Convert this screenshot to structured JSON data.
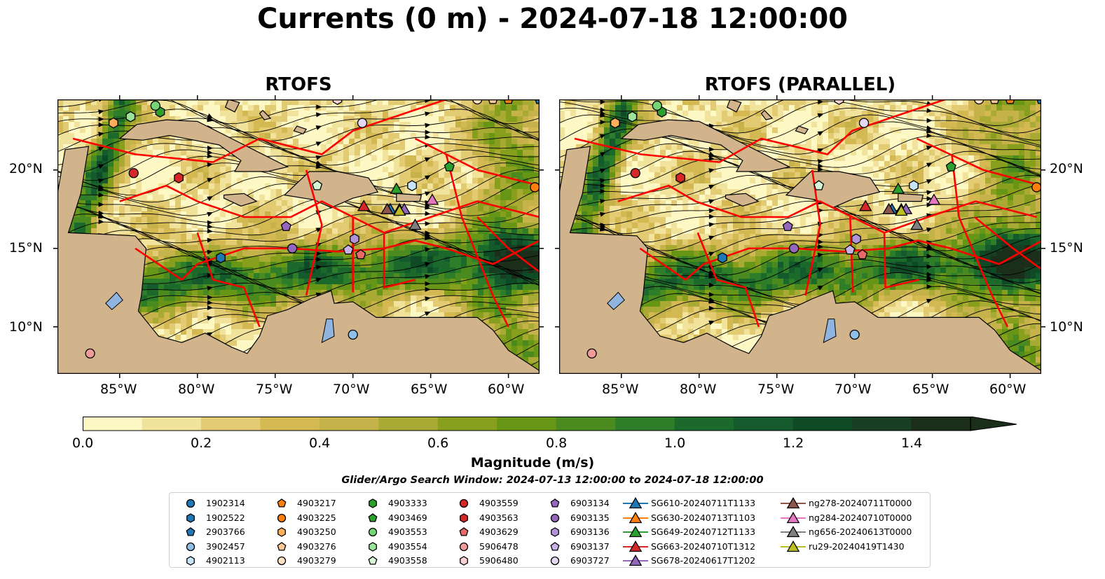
{
  "title": "Currents (0 m) - 2024-07-18 12:00:00",
  "panels": [
    {
      "title": "RTOFS"
    },
    {
      "title": "RTOFS (PARALLEL)"
    }
  ],
  "lat_ticks": [
    "20°N",
    "15°N",
    "10°N"
  ],
  "lon_ticks": [
    "85°W",
    "80°W",
    "75°W",
    "70°W",
    "65°W",
    "60°W"
  ],
  "colorbar": {
    "label": "Magnitude (m/s)",
    "ticks": [
      "0.0",
      "0.2",
      "0.4",
      "0.6",
      "0.8",
      "1.0",
      "1.2",
      "1.4"
    ],
    "range": [
      0,
      1.6
    ],
    "extend": "max",
    "colors": [
      "#fef9c4",
      "#f2e39c",
      "#e2cb72",
      "#d4b952",
      "#c6b24a",
      "#a8aa34",
      "#879f1c",
      "#679515",
      "#4a8a1e",
      "#2e7d28",
      "#1b6a2c",
      "#145a2c",
      "#0f4a26",
      "#173d22",
      "#1b2e1a"
    ]
  },
  "search_window": "Glider/Argo Search Window: 2024-07-13 12:00:00 to 2024-07-18 12:00:00",
  "chart_data": {
    "type": "map",
    "variable": "Currents (0 m)",
    "extent": {
      "lon": [
        -89,
        -58
      ],
      "lat": [
        7,
        24.5
      ]
    },
    "floats": [
      {
        "name": "1902314",
        "marker": "circle",
        "color": "#1f77b4",
        "lon": -57.5,
        "lat": 23.5
      },
      {
        "name": "1902522",
        "marker": "hexagon",
        "color": "#1f77b4",
        "lon": -78.5,
        "lat": 14.4
      },
      {
        "name": "2903766",
        "marker": "pentagon",
        "color": "#1f77b4",
        "lon": -58,
        "lat": 24.5
      },
      {
        "name": "3902457",
        "marker": "circle",
        "color": "#8fc1e8",
        "lon": -70,
        "lat": 9.5
      },
      {
        "name": "4902113",
        "marker": "hexagon",
        "color": "#c6e6f7",
        "lon": -66.2,
        "lat": 19.0
      },
      {
        "name": "4903217",
        "marker": "pentagon",
        "color": "#ff7f0e",
        "lon": -60,
        "lat": 24.5
      },
      {
        "name": "4903225",
        "marker": "circle",
        "color": "#ff7f0e",
        "lon": -58.3,
        "lat": 18.9
      },
      {
        "name": "4903250",
        "marker": "hexagon",
        "color": "#ffae5c",
        "lon": -85.4,
        "lat": 23.0
      },
      {
        "name": "4903276",
        "marker": "pentagon",
        "color": "#ffc896",
        "lon": -61,
        "lat": 24.5
      },
      {
        "name": "4903279",
        "marker": "circle",
        "color": "#ffe2c4",
        "lon": -62,
        "lat": 24.5
      },
      {
        "name": "4903333",
        "marker": "hexagon",
        "color": "#2ca02c",
        "lon": -82.4,
        "lat": 23.7
      },
      {
        "name": "4903469",
        "marker": "pentagon",
        "color": "#2ca02c",
        "lon": -63.8,
        "lat": 20.2
      },
      {
        "name": "4903553",
        "marker": "circle",
        "color": "#75d475",
        "lon": -82.7,
        "lat": 24.1
      },
      {
        "name": "4903554",
        "marker": "hexagon",
        "color": "#9be39b",
        "lon": -84.3,
        "lat": 23.4
      },
      {
        "name": "4903558",
        "marker": "pentagon",
        "color": "#d6f5d6",
        "lon": -72.3,
        "lat": 19.0
      },
      {
        "name": "4903559",
        "marker": "circle",
        "color": "#d62728",
        "lon": -84.1,
        "lat": 19.8
      },
      {
        "name": "4903563",
        "marker": "hexagon",
        "color": "#d62728",
        "lon": -81.2,
        "lat": 19.5
      },
      {
        "name": "4903629",
        "marker": "pentagon",
        "color": "#e8696a",
        "lon": -69.5,
        "lat": 14.6
      },
      {
        "name": "5906478",
        "marker": "circle",
        "color": "#f29a9a",
        "lon": -86.9,
        "lat": 8.3
      },
      {
        "name": "5906480",
        "marker": "hexagon",
        "color": "#fbd0d0",
        "lon": -71,
        "lat": 24.5
      },
      {
        "name": "6903134",
        "marker": "pentagon",
        "color": "#9467bd",
        "lon": -74.3,
        "lat": 16.4
      },
      {
        "name": "6903135",
        "marker": "circle",
        "color": "#9467bd",
        "lon": -73.9,
        "lat": 15.0
      },
      {
        "name": "6903136",
        "marker": "hexagon",
        "color": "#b294d6",
        "lon": -69.9,
        "lat": 15.6
      },
      {
        "name": "6903137",
        "marker": "pentagon",
        "color": "#c9b3e6",
        "lon": -70.3,
        "lat": 14.9
      },
      {
        "name": "6903727",
        "marker": "circle",
        "color": "#e4d7f4",
        "lon": -69.4,
        "lat": 23.0
      }
    ],
    "gliders": [
      {
        "name": "SG610-20240711T1133",
        "marker": "triangle",
        "color": "#1f77b4",
        "lon": -67.6,
        "lat": 17.5
      },
      {
        "name": "SG630-20240713T1103",
        "marker": "triangle",
        "color": "#ff7f0e",
        "lon": -67.0,
        "lat": 17.5
      },
      {
        "name": "SG649-20240712T1133",
        "marker": "triangle",
        "color": "#2ca02c",
        "lon": -67.2,
        "lat": 18.8
      },
      {
        "name": "SG663-20240710T1312",
        "marker": "triangle",
        "color": "#d62728",
        "lon": -69.3,
        "lat": 17.7
      },
      {
        "name": "SG678-20240617T1202",
        "marker": "triangle",
        "color": "#9467bd",
        "lon": -66.7,
        "lat": 17.5
      },
      {
        "name": "ng278-20240711T0000",
        "marker": "triangle",
        "color": "#8c564b",
        "lon": -67.8,
        "lat": 17.5
      },
      {
        "name": "ng284-20240710T0000",
        "marker": "triangle",
        "color": "#e377c2",
        "lon": -64.9,
        "lat": 18.1
      },
      {
        "name": "ng656-20240613T0000",
        "marker": "triangle",
        "color": "#7f7f7f",
        "lon": -66.0,
        "lat": 16.5
      },
      {
        "name": "ru29-20240419T1430",
        "marker": "triangle",
        "color": "#bcbd22",
        "lon": -67.0,
        "lat": 17.4
      }
    ]
  }
}
